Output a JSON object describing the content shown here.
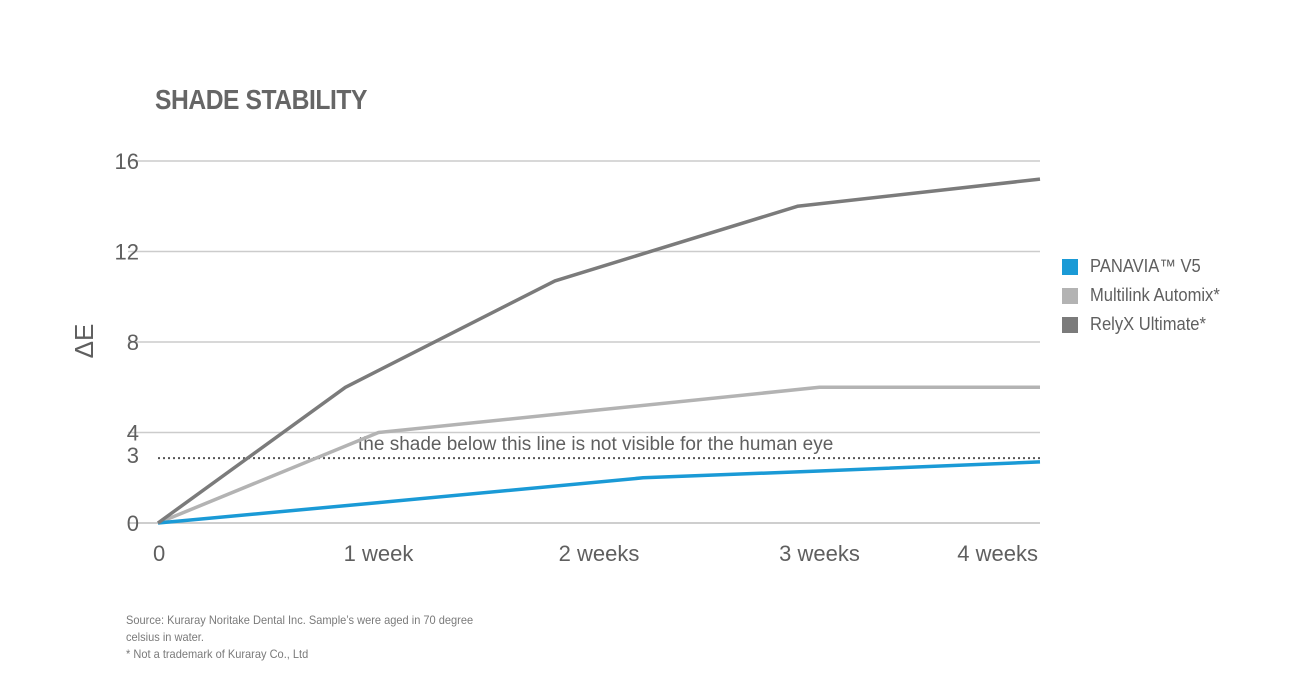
{
  "chart_data": {
    "type": "line",
    "title": "SHADE STABILITY",
    "xlabel": "",
    "ylabel": "ΔE",
    "categories": [
      "0",
      "1 week",
      "2 weeks",
      "3 weeks",
      "4 weeks"
    ],
    "y_ticks": [
      "0",
      "3",
      "4",
      "8",
      "12",
      "16"
    ],
    "ylim": [
      0,
      16
    ],
    "grid": true,
    "legend_position": "right",
    "series": [
      {
        "name": "PANAVIA™ V5",
        "color": "#1a9ad6",
        "points": [
          [
            0,
            0
          ],
          [
            1,
            0.9
          ],
          [
            2.2,
            2.0
          ],
          [
            3,
            2.3
          ],
          [
            4,
            2.7
          ]
        ]
      },
      {
        "name": "Multilink Automix*",
        "color": "#b3b3b3",
        "points": [
          [
            0,
            0
          ],
          [
            1,
            4.0
          ],
          [
            2,
            5.0
          ],
          [
            3,
            6.0
          ],
          [
            4,
            6.0
          ]
        ]
      },
      {
        "name": "RelyX Ultimate*",
        "color": "#7b7b7b",
        "points": [
          [
            0,
            0
          ],
          [
            0.85,
            6.0
          ],
          [
            1.8,
            10.7
          ],
          [
            2.9,
            14.0
          ],
          [
            4,
            15.2
          ]
        ]
      }
    ],
    "threshold": {
      "value": 3,
      "label": "the shade below this line is not visible for the human eye"
    }
  },
  "footnote": {
    "line1": "Source: Kuraray Noritake Dental Inc. Sample’s were aged in 70 degree",
    "line2": "celsius in water.",
    "line3": "* Not a trademark of Kuraray Co., Ltd"
  }
}
